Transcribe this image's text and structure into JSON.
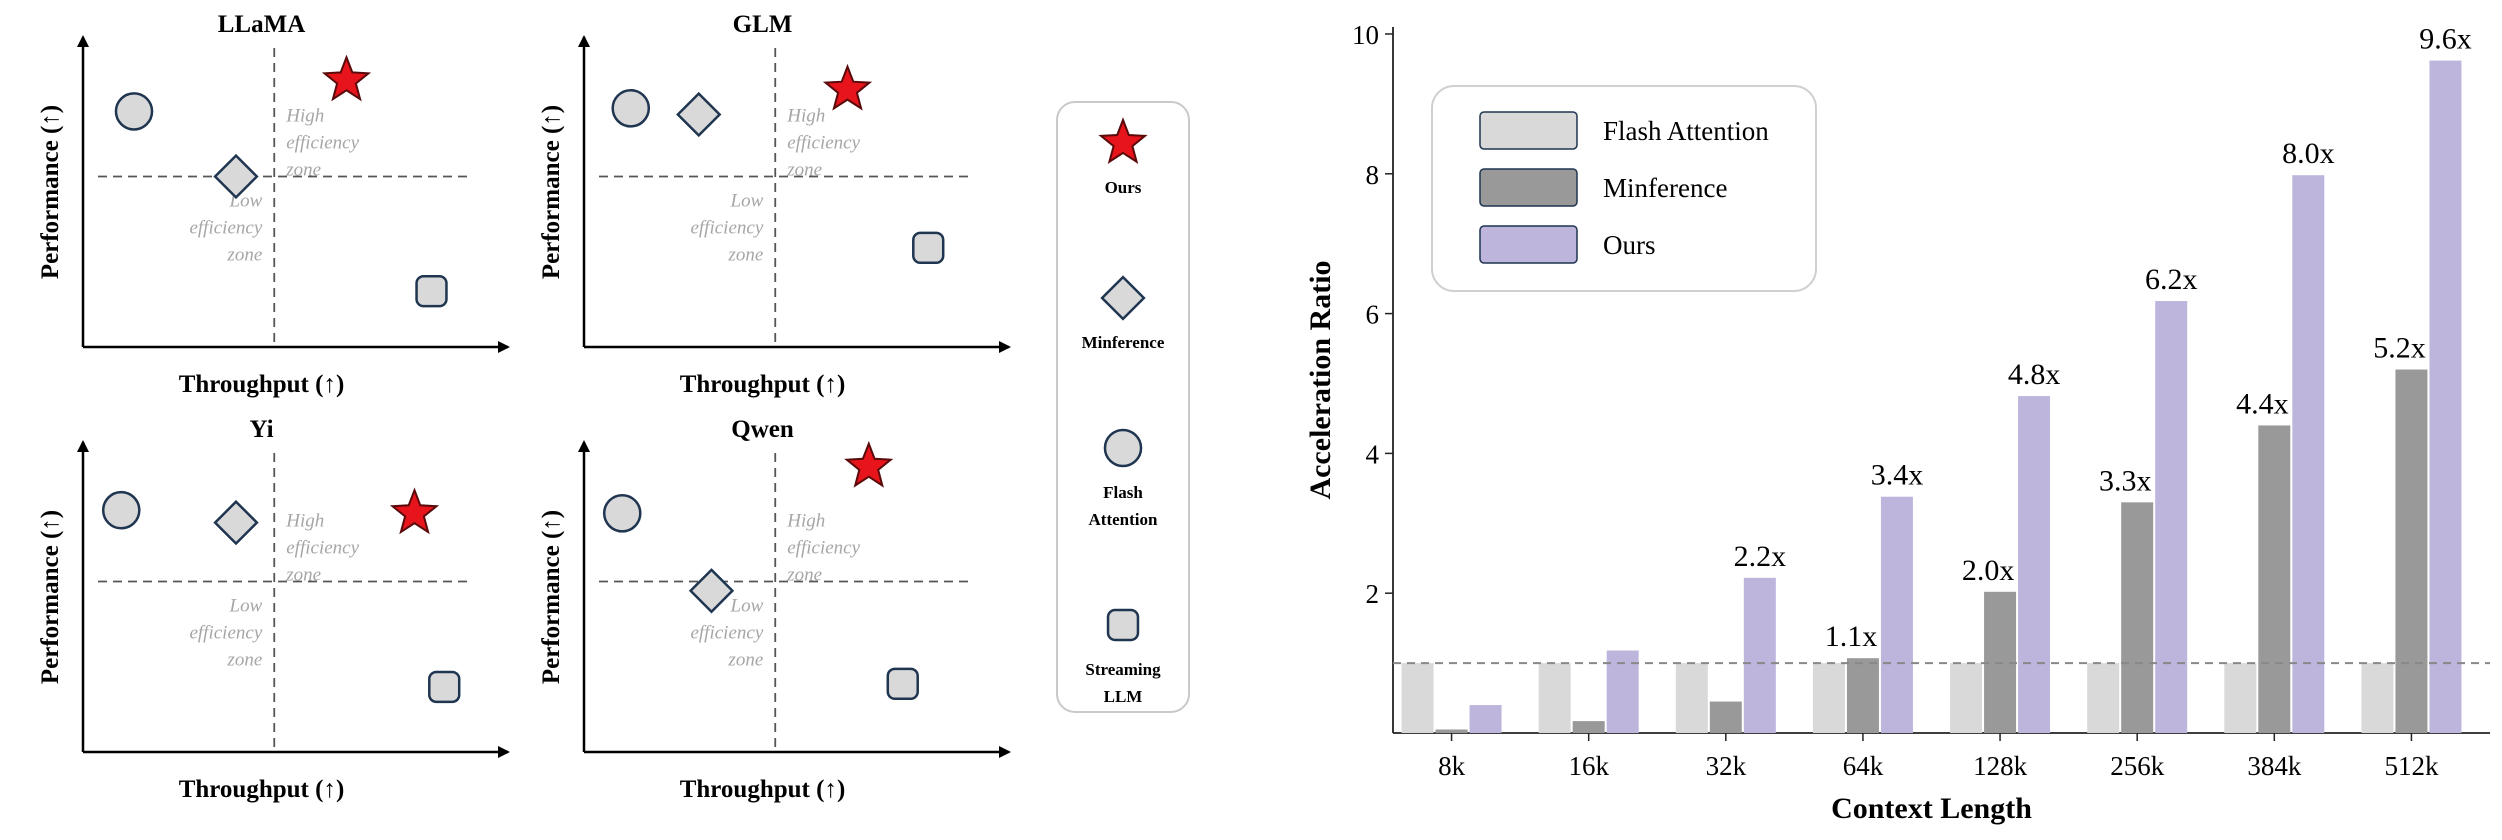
{
  "quadrant_panels": {
    "xlabel": "Throughput (↑)",
    "ylabel": "Performance (↑)",
    "high_zone": [
      "High",
      "efficiency",
      "zone"
    ],
    "low_zone": [
      "Low",
      "efficiency",
      "zone"
    ],
    "panels": [
      {
        "title": "LLaMA",
        "points": {
          "ours": [
            0.62,
            0.86
          ],
          "minference": [
            0.36,
            0.55
          ],
          "flash": [
            0.12,
            0.76
          ],
          "streaming": [
            0.82,
            0.18
          ]
        }
      },
      {
        "title": "GLM",
        "points": {
          "ours": [
            0.62,
            0.83
          ],
          "minference": [
            0.27,
            0.75
          ],
          "flash": [
            0.11,
            0.77
          ],
          "streaming": [
            0.81,
            0.32
          ]
        }
      },
      {
        "title": "Yi",
        "points": {
          "ours": [
            0.78,
            0.77
          ],
          "minference": [
            0.36,
            0.74
          ],
          "flash": [
            0.09,
            0.78
          ],
          "streaming": [
            0.85,
            0.21
          ]
        }
      },
      {
        "title": "Qwen",
        "points": {
          "ours": [
            0.67,
            0.92
          ],
          "minference": [
            0.3,
            0.52
          ],
          "flash": [
            0.09,
            0.77
          ],
          "streaming": [
            0.75,
            0.22
          ]
        }
      }
    ],
    "legend": [
      {
        "key": "ours",
        "lines": [
          "Ours"
        ]
      },
      {
        "key": "minference",
        "lines": [
          "Minference"
        ]
      },
      {
        "key": "flash",
        "lines": [
          "Flash",
          "Attention"
        ]
      },
      {
        "key": "streaming",
        "lines": [
          "Streaming",
          "LLM"
        ]
      }
    ],
    "colors": {
      "star": "#e8141c",
      "marker_fill": "#d9d9d9",
      "marker_stroke": "#1f3550"
    }
  },
  "chart_data": {
    "type": "bar",
    "xlabel": "Context Length",
    "ylabel": "Acceleration Ratio",
    "categories": [
      "8k",
      "16k",
      "32k",
      "64k",
      "128k",
      "256k",
      "384k",
      "512k"
    ],
    "series": [
      {
        "name": "Flash Attention",
        "values": [
          1,
          1,
          1,
          1,
          1,
          1,
          1,
          1
        ],
        "color": "#d9d9d9"
      },
      {
        "name": "Minference",
        "values": [
          0.05,
          0.17,
          0.45,
          1.07,
          2.02,
          3.3,
          4.4,
          5.2
        ],
        "color": "#999999",
        "labels": [
          "",
          "",
          "",
          "1.1x",
          "2.0x",
          "3.3x",
          "4.4x",
          "5.2x"
        ]
      },
      {
        "name": "Ours",
        "values": [
          0.4,
          1.18,
          2.22,
          3.38,
          4.82,
          6.18,
          7.98,
          9.62
        ],
        "color": "#bdb5dc",
        "labels": [
          "",
          "",
          "2.2x",
          "3.4x",
          "4.8x",
          "6.2x",
          "8.0x",
          "9.6x"
        ]
      }
    ],
    "ylim": [
      0,
      10.1
    ],
    "yticks": [
      2,
      4,
      6,
      8,
      10
    ],
    "reference_line": 1,
    "legend_position": "top-left",
    "grid": false
  }
}
